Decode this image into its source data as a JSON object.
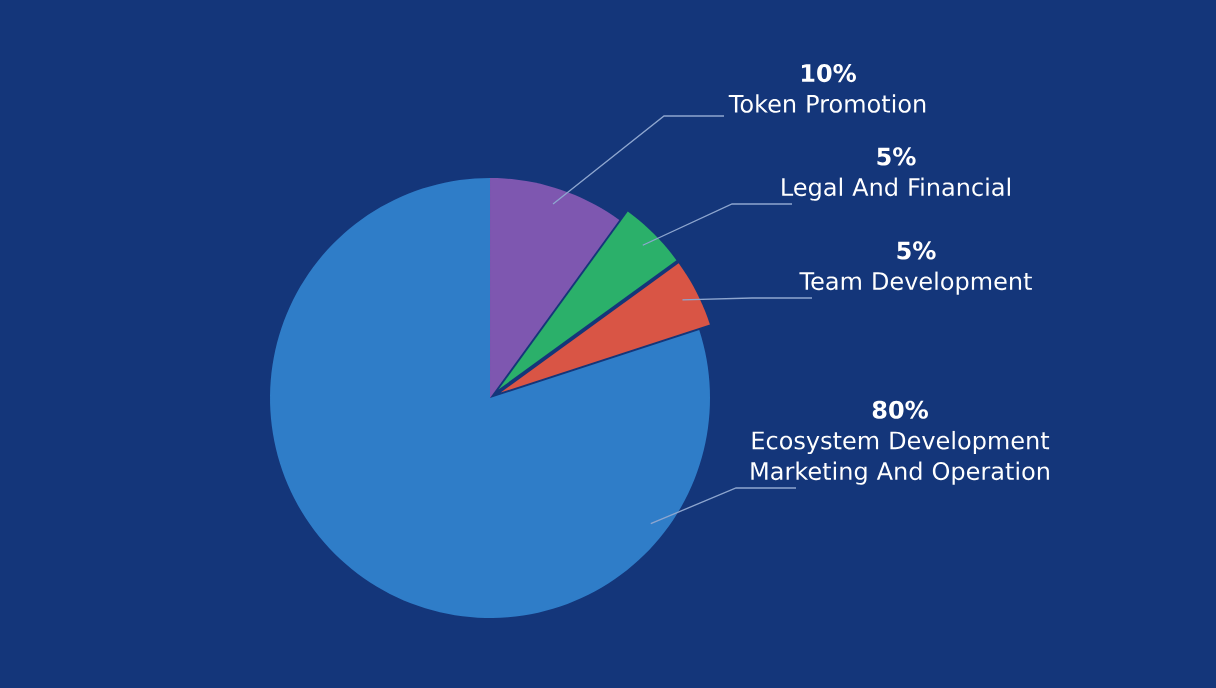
{
  "chart_data": {
    "type": "pie",
    "categories": [
      "Token Promotion",
      "Legal And Financial",
      "Team Development",
      "Ecosystem Development Marketing And Operation"
    ],
    "values": [
      10,
      5,
      5,
      80
    ],
    "colors": [
      "#7e57b0",
      "#2bb06a",
      "#d95545",
      "#2f7dc8"
    ],
    "value_labels": [
      "10%",
      "5%",
      "5%",
      "80%"
    ]
  }
}
